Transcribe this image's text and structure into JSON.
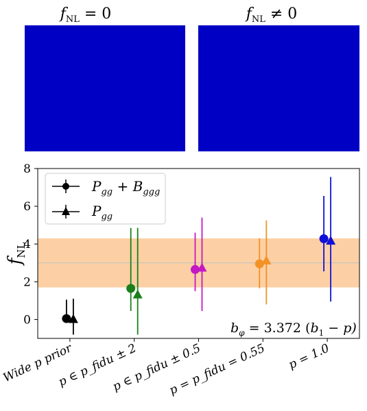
{
  "panels": {
    "left_title": "f_NL = 0",
    "right_title": "f_NL ≠ 0",
    "left_title_main": "f",
    "left_title_sub": "NL",
    "left_title_rest": " = 0",
    "right_title_main": "f",
    "right_title_sub": "NL",
    "right_title_rest": " ≠ 0",
    "colormap": [
      "#00008f",
      "#0050ff",
      "#18c0ff",
      "#60ffa0",
      "#e0ff20",
      "#ffb000",
      "#ff3000",
      "#800000"
    ]
  },
  "chart_data": {
    "type": "scatter",
    "ylabel": "f_NL",
    "ylabel_main": "f",
    "ylabel_sub": "NL",
    "ylim": [
      -1.0,
      8.0
    ],
    "yticks": [
      0,
      2,
      4,
      6,
      8
    ],
    "grid": false,
    "legend_position": "top-left",
    "categories": [
      "Wide p prior",
      "p ∈ p_fidu ± 2",
      "p ∈ p_fidu ± 0.5",
      "p = p_fidu = 0.55",
      "p = 1.0"
    ],
    "category_colors": [
      "#000000",
      "#1a7f1a",
      "#c418c4",
      "#f39227",
      "#1010d8"
    ],
    "reference_line": {
      "value": 3.0,
      "color": "#c0c0c0"
    },
    "band": {
      "range": [
        1.7,
        4.3
      ],
      "color": "#fcd0a4"
    },
    "series": [
      {
        "name": "P_gg + B_ggg",
        "marker": "circle",
        "values": [
          0.05,
          1.65,
          2.65,
          2.95,
          4.28
        ],
        "err_low": [
          0.05,
          0.45,
          1.5,
          1.65,
          2.55
        ],
        "err_high": [
          1.05,
          4.85,
          4.6,
          4.3,
          6.55
        ]
      },
      {
        "name": "P_gg",
        "marker": "triangle",
        "values": [
          0.0,
          1.3,
          2.72,
          3.1,
          4.15
        ],
        "err_low": [
          -0.8,
          -0.8,
          0.45,
          0.8,
          0.95
        ],
        "err_high": [
          1.1,
          4.85,
          5.4,
          5.25,
          7.55
        ]
      }
    ],
    "legend": [
      {
        "main": "P",
        "sub": "gg",
        "plus": " + ",
        "main2": "B",
        "sub2": "ggg"
      },
      {
        "main": "P",
        "sub": "gg"
      }
    ],
    "annotation": "b_φ = 3.372 (b_1 − p)",
    "annotation_parts": {
      "lhs": "b",
      "lhs_sub": "φ",
      "rhs": " = 3.372 (",
      "b": "b",
      "b_sub": "1",
      "tail": " − p)"
    }
  }
}
